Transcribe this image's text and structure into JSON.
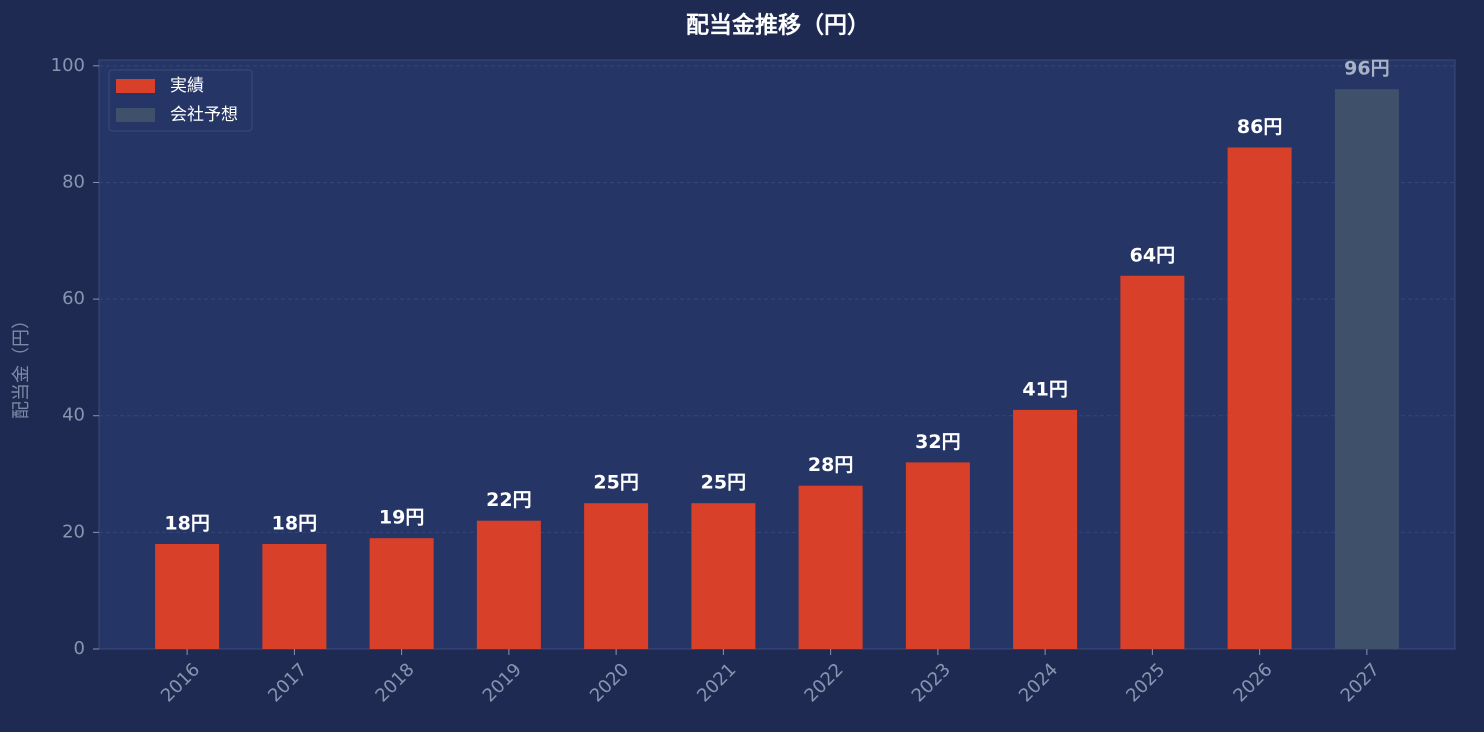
{
  "chart_data": {
    "type": "bar",
    "title": "配当金推移（円）",
    "y_label": "配当金（円）",
    "categories": [
      "2016",
      "2017",
      "2018",
      "2019",
      "2020",
      "2021",
      "2022",
      "2023",
      "2024",
      "2025",
      "2026",
      "2027"
    ],
    "series": [
      {
        "name": "実績",
        "color": "#d9402a",
        "label_color": "#ffffff",
        "values": [
          18,
          18,
          19,
          22,
          25,
          25,
          28,
          32,
          41,
          64,
          86,
          null
        ],
        "value_labels": [
          "18円",
          "18円",
          "19円",
          "22円",
          "25円",
          "25円",
          "28円",
          "32円",
          "41円",
          "64円",
          "86円",
          null
        ]
      },
      {
        "name": "会社予想",
        "color": "#3f506b",
        "label_color": "#a8b3c8",
        "values": [
          null,
          null,
          null,
          null,
          null,
          null,
          null,
          null,
          null,
          null,
          null,
          96
        ],
        "value_labels": [
          null,
          null,
          null,
          null,
          null,
          null,
          null,
          null,
          null,
          null,
          null,
          "96円"
        ]
      }
    ],
    "ylim": [
      0,
      101
    ],
    "yticks": [
      0,
      20,
      40,
      60,
      80,
      100
    ],
    "grid": true,
    "legend": "upper left"
  }
}
